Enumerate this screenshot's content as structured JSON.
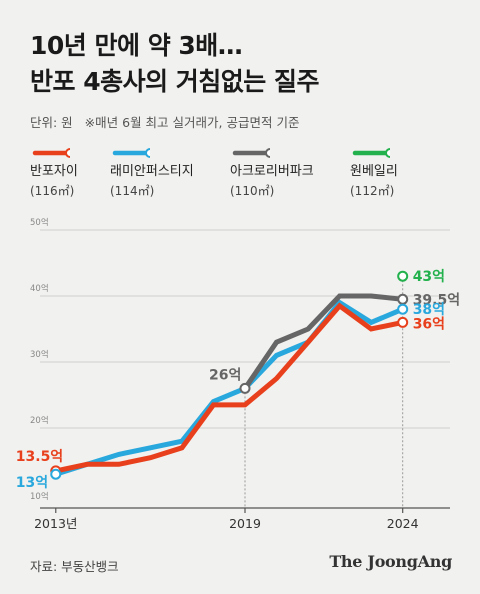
{
  "header": {
    "title_line1": "10년 만에 약 3배…",
    "title_line2": "반포 4총사의 거침없는 질주",
    "unit": "단위: 원",
    "note": "※매년 6월 최고 실거래가, 공급면적 기준"
  },
  "footer": {
    "source": "자료: 부동산뱅크",
    "brand": "The JoongAng"
  },
  "colors": {
    "banpo_xi": "#e8401c",
    "raemian": "#29a8dd",
    "acro": "#666666",
    "one_bailey": "#22b14c"
  },
  "chart_data": {
    "type": "line",
    "title": "10년 만에 약 3배… 반포 4총사의 거침없는 질주",
    "ylim": [
      10,
      50
    ],
    "xlim": [
      2012.5,
      2025.5
    ],
    "y_ticks": [
      10,
      20,
      30,
      40,
      50
    ],
    "y_tick_labels": [
      "10억",
      "20억",
      "30억",
      "40억",
      "50억"
    ],
    "x_ticks": [
      2013,
      2019,
      2024
    ],
    "x_tick_labels": [
      "2013년",
      "2019",
      "2024"
    ],
    "grid": true,
    "legend": "top",
    "series": [
      {
        "key": "raemian",
        "name": "래미안퍼스티지",
        "size": "(114㎡)",
        "x": [
          2013,
          2014,
          2015,
          2016,
          2017,
          2018,
          2019,
          2020,
          2021,
          2022,
          2023,
          2024
        ],
        "y": [
          13,
          14.5,
          16,
          17,
          18,
          24,
          26,
          31,
          33,
          39,
          36,
          38
        ]
      },
      {
        "key": "banpo_xi",
        "name": "반포자이",
        "size": "(116㎡)",
        "x": [
          2013,
          2014,
          2015,
          2016,
          2017,
          2018,
          2019,
          2020,
          2021,
          2022,
          2023,
          2024
        ],
        "y": [
          13.5,
          14.5,
          14.5,
          15.5,
          17,
          23.5,
          23.5,
          27.5,
          33,
          38.5,
          35,
          36
        ]
      },
      {
        "key": "acro",
        "name": "아크로리버파크",
        "size": "(110㎡)",
        "x": [
          2019,
          2020,
          2021,
          2022,
          2023,
          2024
        ],
        "y": [
          26,
          33,
          35,
          40,
          40,
          39.5
        ]
      },
      {
        "key": "one_bailey",
        "name": "원베일리",
        "size": "(112㎡)",
        "x": [
          2024
        ],
        "y": [
          43
        ]
      }
    ],
    "annotations": [
      {
        "label": "13.5억",
        "series": "banpo_xi",
        "x": 2013,
        "y": 13.5
      },
      {
        "label": "13억",
        "series": "raemian",
        "x": 2013,
        "y": 13
      },
      {
        "label": "26억",
        "series": "acro",
        "x": 2019,
        "y": 26
      },
      {
        "label": "43억",
        "series": "one_bailey",
        "x": 2024,
        "y": 43
      },
      {
        "label": "39.5억",
        "series": "acro",
        "x": 2024,
        "y": 39.5
      },
      {
        "label": "38억",
        "series": "raemian",
        "x": 2024,
        "y": 38
      },
      {
        "label": "36억",
        "series": "banpo_xi",
        "x": 2024,
        "y": 36
      }
    ]
  }
}
